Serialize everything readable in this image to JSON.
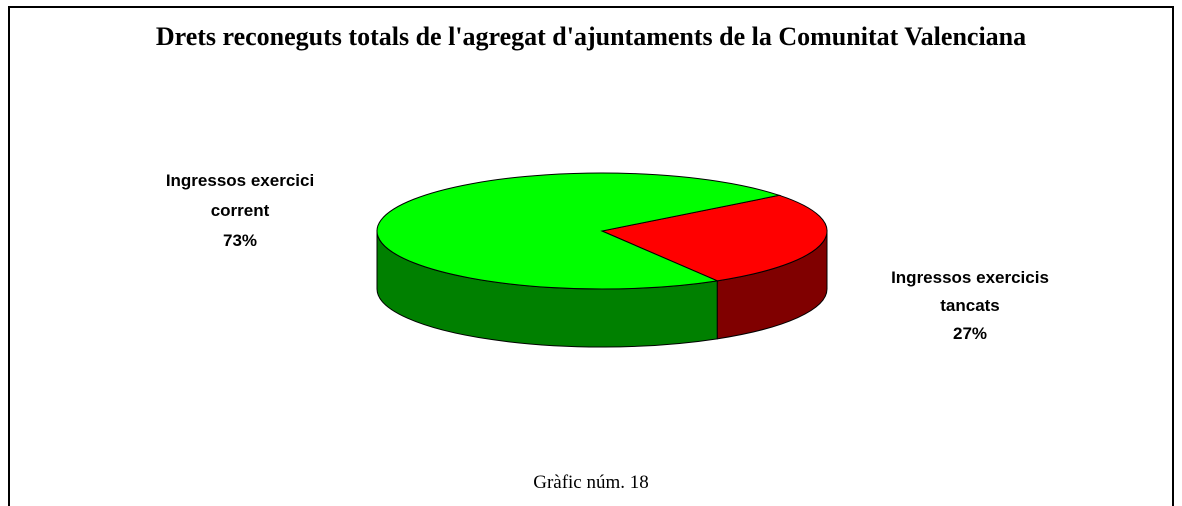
{
  "chart_data": {
    "type": "pie3d",
    "title": "Drets reconeguts totals de l'agregat d'ajuntaments de la Comunitat Valenciana",
    "categories": [
      "Ingressos exercici corrent",
      "Ingressos exercicis tancats"
    ],
    "values": [
      73,
      27
    ],
    "value_labels": [
      "73%",
      "27%"
    ],
    "colors": [
      "#00ff00",
      "#ff0000"
    ],
    "caption": "Gràfic núm. 18"
  }
}
